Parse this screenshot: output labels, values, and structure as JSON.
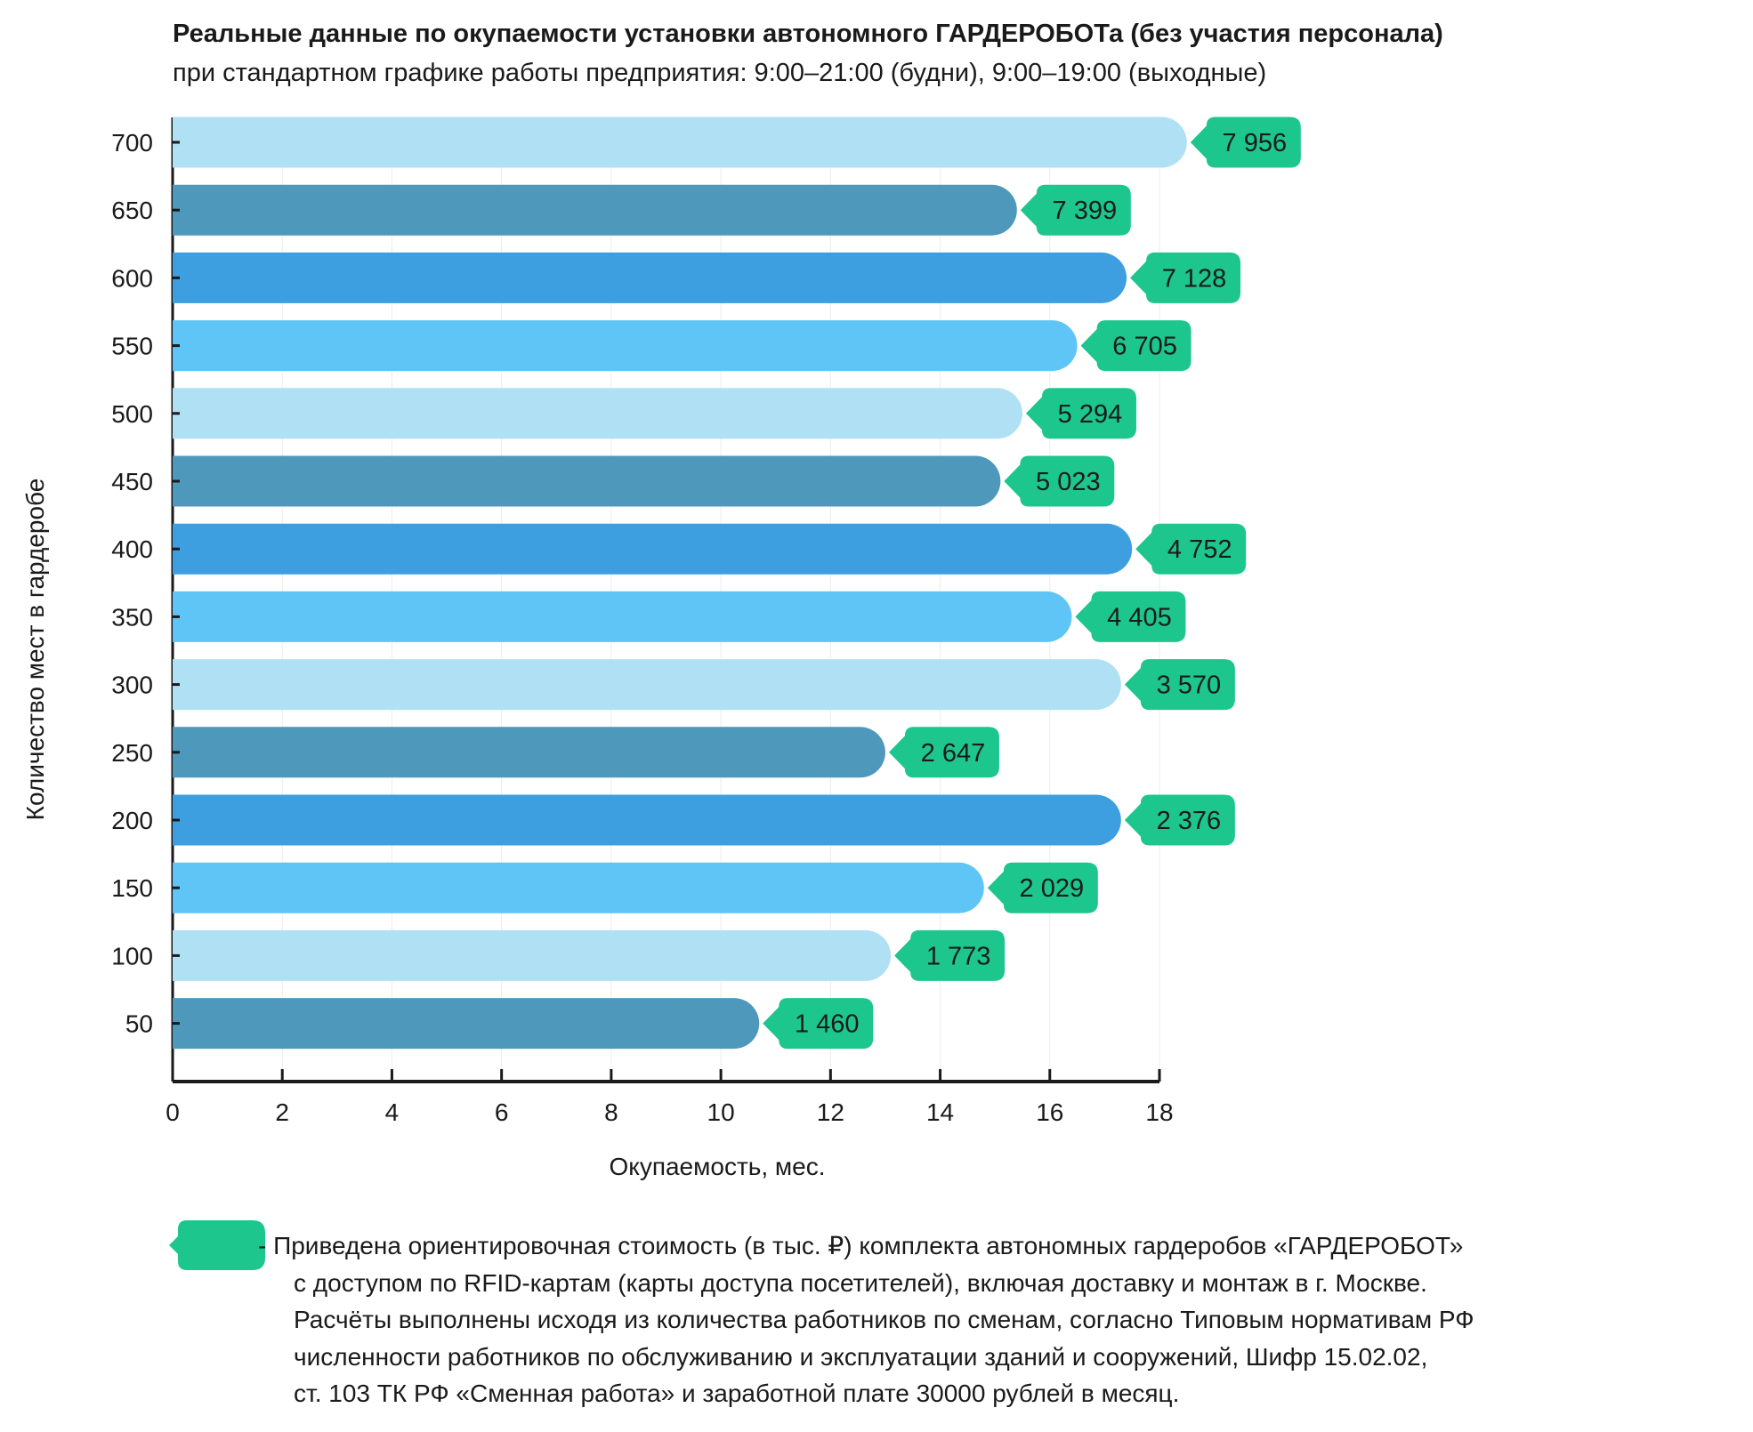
{
  "chart_data": {
    "type": "bar",
    "orientation": "horizontal",
    "title": "Реальные данные по окупаемости установки автономного ГАРДЕРОБОТа (без участия персонала)",
    "subtitle": "при стандартном графике работы предприятия: 9:00–21:00 (будни), 9:00–19:00 (выходные)",
    "xlabel": "Окупаемость, мес.",
    "ylabel": "Количество мест в гардеробе",
    "xlim": [
      0,
      18
    ],
    "xticks": [
      "0",
      "2",
      "4",
      "6",
      "8",
      "10",
      "12",
      "14",
      "16",
      "18"
    ],
    "categories": [
      "700",
      "650",
      "600",
      "550",
      "500",
      "450",
      "400",
      "350",
      "300",
      "250",
      "200",
      "150",
      "100",
      "50"
    ],
    "values": [
      18.5,
      15.4,
      17.4,
      16.5,
      15.5,
      15.1,
      17.5,
      16.4,
      17.3,
      13.0,
      17.3,
      14.8,
      13.1,
      10.7
    ],
    "labels": [
      "7 956",
      "7 399",
      "7 128",
      "6 705",
      "5 294",
      "5 023",
      "4 752",
      "4 405",
      "3 570",
      "2 647",
      "2 376",
      "2 029",
      "1 773",
      "1 460"
    ],
    "colors": [
      "#b0e0f4",
      "#4e98bc",
      "#3d9ee0",
      "#5ec5f6"
    ],
    "label_color": "#1dc68c",
    "grid": "vertical light"
  },
  "legend": {
    "lines": [
      "- Приведена ориентировочная стоимость (в тыс. ₽) комплекта автономных гардеробов «ГАРДЕРОБОТ»",
      "с доступом по RFID-картам (карты доступа посетителей), включая доставку и монтаж в г. Москве.",
      "Расчёты выполнены исходя из количества работников по сменам, согласно Типовым нормативам РФ",
      "численности работников по обслуживанию и эксплуатации зданий и сооружений, Шифр 15.02.02,",
      "ст. 103 ТК РФ «Сменная работа» и заработной плате 30000 рублей в месяц."
    ]
  }
}
